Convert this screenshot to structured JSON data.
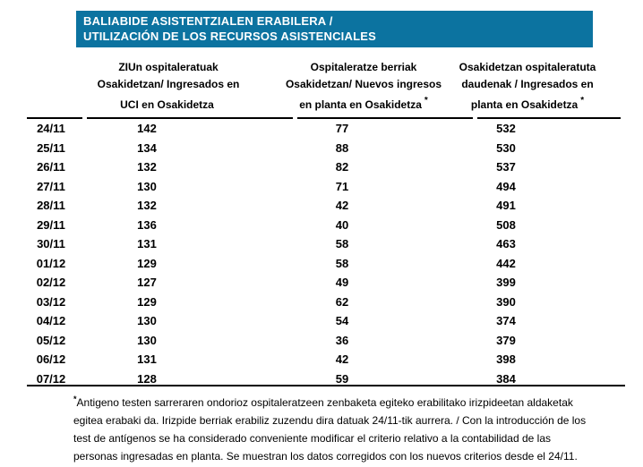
{
  "title": {
    "line1": "BALIABIDE ASISTENTZIALEN ERABILERA /",
    "line2": "UTILIZACIÓN DE LOS RECURSOS ASISTENCIALES"
  },
  "colors": {
    "title_bar_bg": "#0c73a0",
    "title_text": "#ffffff",
    "body_text": "#000000",
    "rule": "#000000"
  },
  "table": {
    "columns": [
      {
        "lines": [
          "",
          "",
          ""
        ],
        "asterisk": ""
      },
      {
        "lines": [
          "ZIUn ospitaleratuak",
          "Osakidetzan/ Ingresados en",
          "UCI en Osakidetza"
        ],
        "asterisk": ""
      },
      {
        "lines": [
          "Ospitaleratze berriak",
          "Osakidetzan/ Nuevos ingresos",
          "en planta en Osakidetza"
        ],
        "asterisk": "*"
      },
      {
        "lines": [
          "Osakidetzan ospitaleratuta",
          "daudenak / Ingresados en",
          "planta en Osakidetza"
        ],
        "asterisk": "*"
      }
    ],
    "rows": [
      {
        "date": "24/11",
        "values": [
          142,
          77,
          532
        ]
      },
      {
        "date": "25/11",
        "values": [
          134,
          88,
          530
        ]
      },
      {
        "date": "26/11",
        "values": [
          132,
          82,
          537
        ]
      },
      {
        "date": "27/11",
        "values": [
          130,
          71,
          494
        ]
      },
      {
        "date": "28/11",
        "values": [
          132,
          42,
          491
        ]
      },
      {
        "date": "29/11",
        "values": [
          136,
          40,
          508
        ]
      },
      {
        "date": "30/11",
        "values": [
          131,
          58,
          463
        ]
      },
      {
        "date": "01/12",
        "values": [
          129,
          58,
          442
        ]
      },
      {
        "date": "02/12",
        "values": [
          127,
          49,
          399
        ]
      },
      {
        "date": "03/12",
        "values": [
          129,
          62,
          390
        ]
      },
      {
        "date": "04/12",
        "values": [
          130,
          54,
          374
        ]
      },
      {
        "date": "05/12",
        "values": [
          130,
          36,
          379
        ]
      },
      {
        "date": "06/12",
        "values": [
          131,
          42,
          398
        ]
      },
      {
        "date": "07/12",
        "values": [
          128,
          59,
          384
        ]
      }
    ]
  },
  "footnote": {
    "marker": "*",
    "text": "Antigeno testen sarreraren ondorioz ospitaleratzeen zenbaketa egiteko erabilitako irizpideetan aldaketak egitea erabaki da. Irizpide berriak erabiliz zuzendu dira datuak 24/11-tik aurrera. / Con la introducción de los test de antígenos se ha considerado conveniente modificar el criterio relativo a la contabilidad de las personas ingresadas en planta. Se muestran los datos corregidos con los nuevos criterios desde el 24/11."
  }
}
